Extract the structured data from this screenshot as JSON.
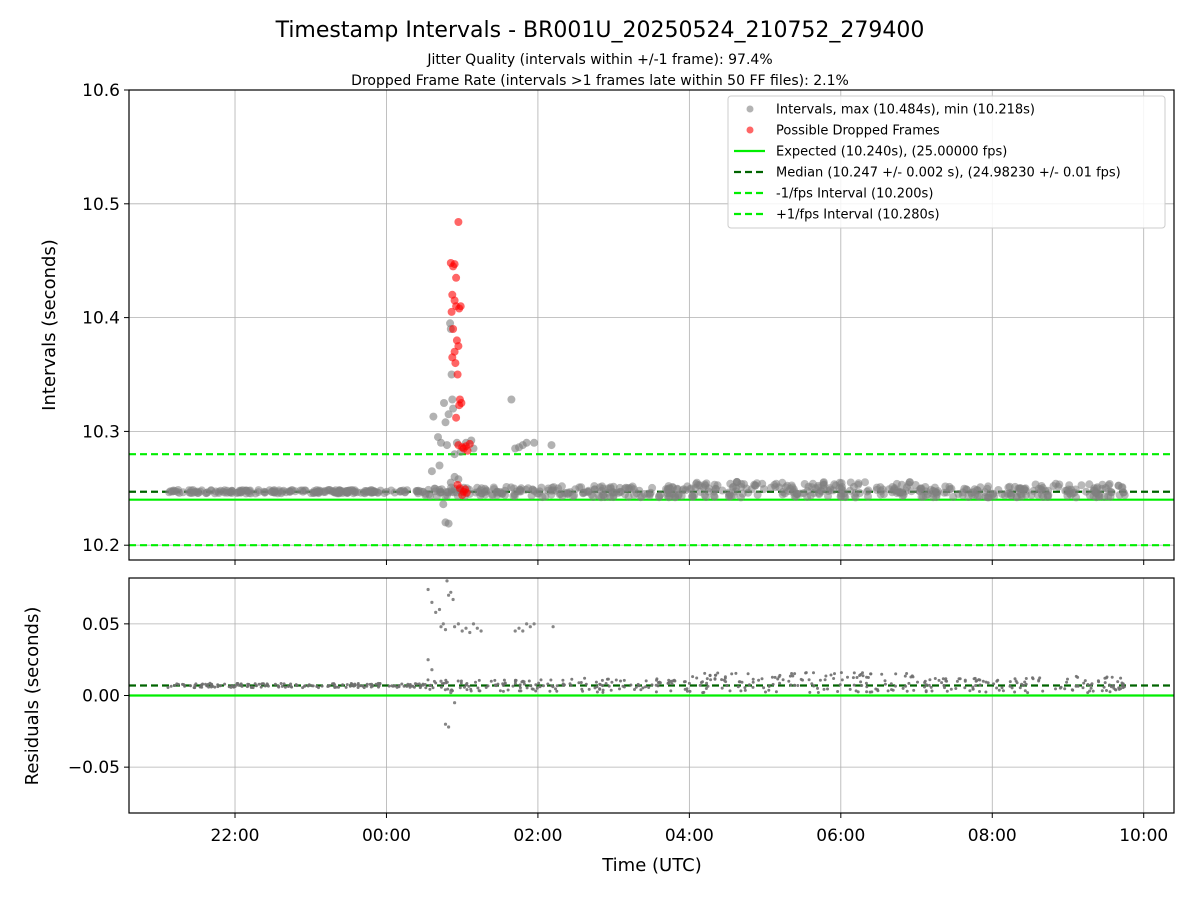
{
  "chart_data": {
    "title": "Timestamp Intervals - BR001U_20250524_210752_279400",
    "subtitle_lines": [
      "Jitter Quality (intervals within +/-1 frame): 97.4%",
      "Dropped Frame Rate (intervals >1 frames late within 50 FF files): 2.1%"
    ],
    "xlabel": "Time (UTC)",
    "x_ticks": [
      "22:00",
      "00:00",
      "02:00",
      "04:00",
      "06:00",
      "08:00",
      "10:00"
    ],
    "x_tick_hours": [
      22,
      24,
      26,
      28,
      30,
      32,
      34
    ],
    "x_range_hours": [
      20.6,
      34.4
    ],
    "grid": true,
    "panels": [
      {
        "id": "intervals",
        "type": "scatter",
        "ylabel": "Intervals (seconds)",
        "ylim": [
          10.187,
          10.6
        ],
        "y_ticks": [
          "10.2",
          "10.3",
          "10.4",
          "10.5",
          "10.6"
        ],
        "y_tick_values": [
          10.2,
          10.3,
          10.4,
          10.5,
          10.6
        ],
        "legend_position": "top-right",
        "legend": [
          {
            "label": "Intervals, max (10.484s), min (10.218s)",
            "marker": "point",
            "color": "#808080"
          },
          {
            "label": "Possible Dropped Frames",
            "marker": "point",
            "color": "#ff0000"
          },
          {
            "label": "Expected (10.240s), (25.00000 fps)",
            "marker": "solid-line",
            "color": "#00ee00"
          },
          {
            "label": "Median (10.247 +/- 0.002 s), (24.98230 +/- 0.01 fps)",
            "marker": "dashed-line",
            "color": "#006400"
          },
          {
            "label": "-1/fps Interval (10.200s)",
            "marker": "dashed-line",
            "color": "#00ee00"
          },
          {
            "label": "+1/fps Interval (10.280s)",
            "marker": "dashed-line",
            "color": "#00ee00"
          }
        ],
        "reference_lines": [
          {
            "name": "expected",
            "y": 10.24,
            "color": "#00ee00",
            "style": "solid"
          },
          {
            "name": "median",
            "y": 10.247,
            "color": "#006400",
            "style": "dashed"
          },
          {
            "name": "minus-1fps",
            "y": 10.2,
            "color": "#00ee00",
            "style": "dashed"
          },
          {
            "name": "plus-1fps",
            "y": 10.28,
            "color": "#00ee00",
            "style": "dashed"
          }
        ],
        "max_interval": 10.484,
        "min_interval": 10.218,
        "gray_outliers": [
          [
            24.62,
            10.313
          ],
          [
            24.68,
            10.295
          ],
          [
            24.72,
            10.29
          ],
          [
            24.76,
            10.325
          ],
          [
            24.78,
            10.308
          ],
          [
            24.8,
            10.288
          ],
          [
            24.82,
            10.315
          ],
          [
            24.84,
            10.395
          ],
          [
            24.85,
            10.39
          ],
          [
            24.86,
            10.35
          ],
          [
            24.87,
            10.328
          ],
          [
            24.88,
            10.32
          ],
          [
            24.9,
            10.28
          ],
          [
            24.93,
            10.29
          ],
          [
            24.98,
            10.282
          ],
          [
            25.05,
            10.29
          ],
          [
            25.12,
            10.292
          ],
          [
            25.15,
            10.285
          ],
          [
            25.65,
            10.328
          ],
          [
            25.7,
            10.285
          ],
          [
            25.75,
            10.286
          ],
          [
            25.8,
            10.288
          ],
          [
            25.85,
            10.29
          ],
          [
            25.95,
            10.29
          ],
          [
            26.18,
            10.288
          ],
          [
            24.6,
            10.265
          ],
          [
            24.7,
            10.27
          ],
          [
            24.75,
            10.236
          ],
          [
            24.78,
            10.22
          ],
          [
            24.82,
            10.219
          ],
          [
            24.85,
            10.255
          ],
          [
            24.9,
            10.26
          ],
          [
            24.95,
            10.258
          ]
        ],
        "dropped_frames": [
          [
            24.85,
            10.448
          ],
          [
            24.88,
            10.445
          ],
          [
            24.9,
            10.447
          ],
          [
            24.92,
            10.435
          ],
          [
            24.95,
            10.484
          ],
          [
            24.87,
            10.42
          ],
          [
            24.9,
            10.415
          ],
          [
            24.86,
            10.405
          ],
          [
            24.92,
            10.41
          ],
          [
            24.96,
            10.408
          ],
          [
            24.98,
            10.41
          ],
          [
            24.88,
            10.39
          ],
          [
            24.93,
            10.38
          ],
          [
            24.9,
            10.37
          ],
          [
            24.95,
            10.375
          ],
          [
            24.87,
            10.365
          ],
          [
            24.91,
            10.36
          ],
          [
            24.94,
            10.35
          ],
          [
            24.97,
            10.328
          ],
          [
            24.99,
            10.325
          ],
          [
            24.92,
            10.312
          ],
          [
            24.96,
            10.323
          ],
          [
            24.95,
            10.288
          ],
          [
            25.0,
            10.286
          ],
          [
            25.05,
            10.287
          ],
          [
            25.1,
            10.289
          ],
          [
            25.07,
            10.283
          ],
          [
            25.02,
            10.285
          ],
          [
            24.97,
            10.25
          ],
          [
            25.02,
            10.247
          ],
          [
            25.06,
            10.246
          ],
          [
            24.94,
            10.253
          ],
          [
            25.0,
            10.244
          ],
          [
            25.04,
            10.249
          ]
        ],
        "main_band": {
          "segments": [
            {
              "x_start": 21.1,
              "x_end": 24.5,
              "center": 10.247,
              "spread": 0.0015
            },
            {
              "x_start": 24.5,
              "x_end": 25.5,
              "center": 10.247,
              "spread": 0.004
            },
            {
              "x_start": 25.5,
              "x_end": 28.0,
              "center": 10.247,
              "spread": 0.005
            },
            {
              "x_start": 28.0,
              "x_end": 31.0,
              "center": 10.249,
              "spread": 0.007
            },
            {
              "x_start": 31.0,
              "x_end": 32.5,
              "center": 10.247,
              "spread": 0.005
            },
            {
              "x_start": 32.5,
              "x_end": 33.75,
              "center": 10.248,
              "spread": 0.006
            }
          ]
        }
      },
      {
        "id": "residuals",
        "type": "scatter",
        "ylabel": "Residuals (seconds)",
        "ylim": [
          -0.082,
          0.082
        ],
        "y_ticks": [
          "−0.05",
          "0.00",
          "0.05"
        ],
        "y_tick_values": [
          -0.05,
          0.0,
          0.05
        ],
        "reference_lines": [
          {
            "name": "zero",
            "y": 0.0,
            "color": "#00ee00",
            "style": "solid"
          },
          {
            "name": "median-residual",
            "y": 0.007,
            "color": "#006400",
            "style": "dashed"
          }
        ],
        "outliers": [
          [
            24.55,
            0.074
          ],
          [
            24.6,
            0.065
          ],
          [
            24.65,
            0.058
          ],
          [
            24.7,
            0.06
          ],
          [
            24.72,
            0.048
          ],
          [
            24.75,
            0.05
          ],
          [
            24.78,
            0.046
          ],
          [
            24.8,
            0.08
          ],
          [
            24.82,
            0.07
          ],
          [
            24.85,
            0.072
          ],
          [
            24.88,
            0.067
          ],
          [
            24.9,
            0.048
          ],
          [
            24.95,
            0.05
          ],
          [
            25.0,
            0.045
          ],
          [
            25.05,
            0.047
          ],
          [
            25.1,
            0.044
          ],
          [
            25.15,
            0.05
          ],
          [
            25.2,
            0.047
          ],
          [
            25.25,
            0.045
          ],
          [
            25.7,
            0.045
          ],
          [
            25.75,
            0.047
          ],
          [
            25.8,
            0.045
          ],
          [
            25.85,
            0.05
          ],
          [
            25.9,
            0.048
          ],
          [
            25.95,
            0.05
          ],
          [
            26.2,
            0.048
          ],
          [
            24.55,
            0.025
          ],
          [
            24.6,
            0.018
          ],
          [
            24.72,
            0.01
          ],
          [
            24.78,
            -0.02
          ],
          [
            24.82,
            -0.022
          ],
          [
            24.85,
            0.002
          ],
          [
            24.9,
            -0.005
          ]
        ],
        "main_band": {
          "segments": [
            {
              "x_start": 21.1,
              "x_end": 24.5,
              "center": 0.007,
              "spread": 0.0015
            },
            {
              "x_start": 24.5,
              "x_end": 25.5,
              "center": 0.007,
              "spread": 0.004
            },
            {
              "x_start": 25.5,
              "x_end": 28.0,
              "center": 0.007,
              "spread": 0.005
            },
            {
              "x_start": 28.0,
              "x_end": 31.0,
              "center": 0.009,
              "spread": 0.007
            },
            {
              "x_start": 31.0,
              "x_end": 32.5,
              "center": 0.007,
              "spread": 0.005
            },
            {
              "x_start": 32.5,
              "x_end": 33.75,
              "center": 0.008,
              "spread": 0.006
            }
          ]
        }
      }
    ]
  }
}
